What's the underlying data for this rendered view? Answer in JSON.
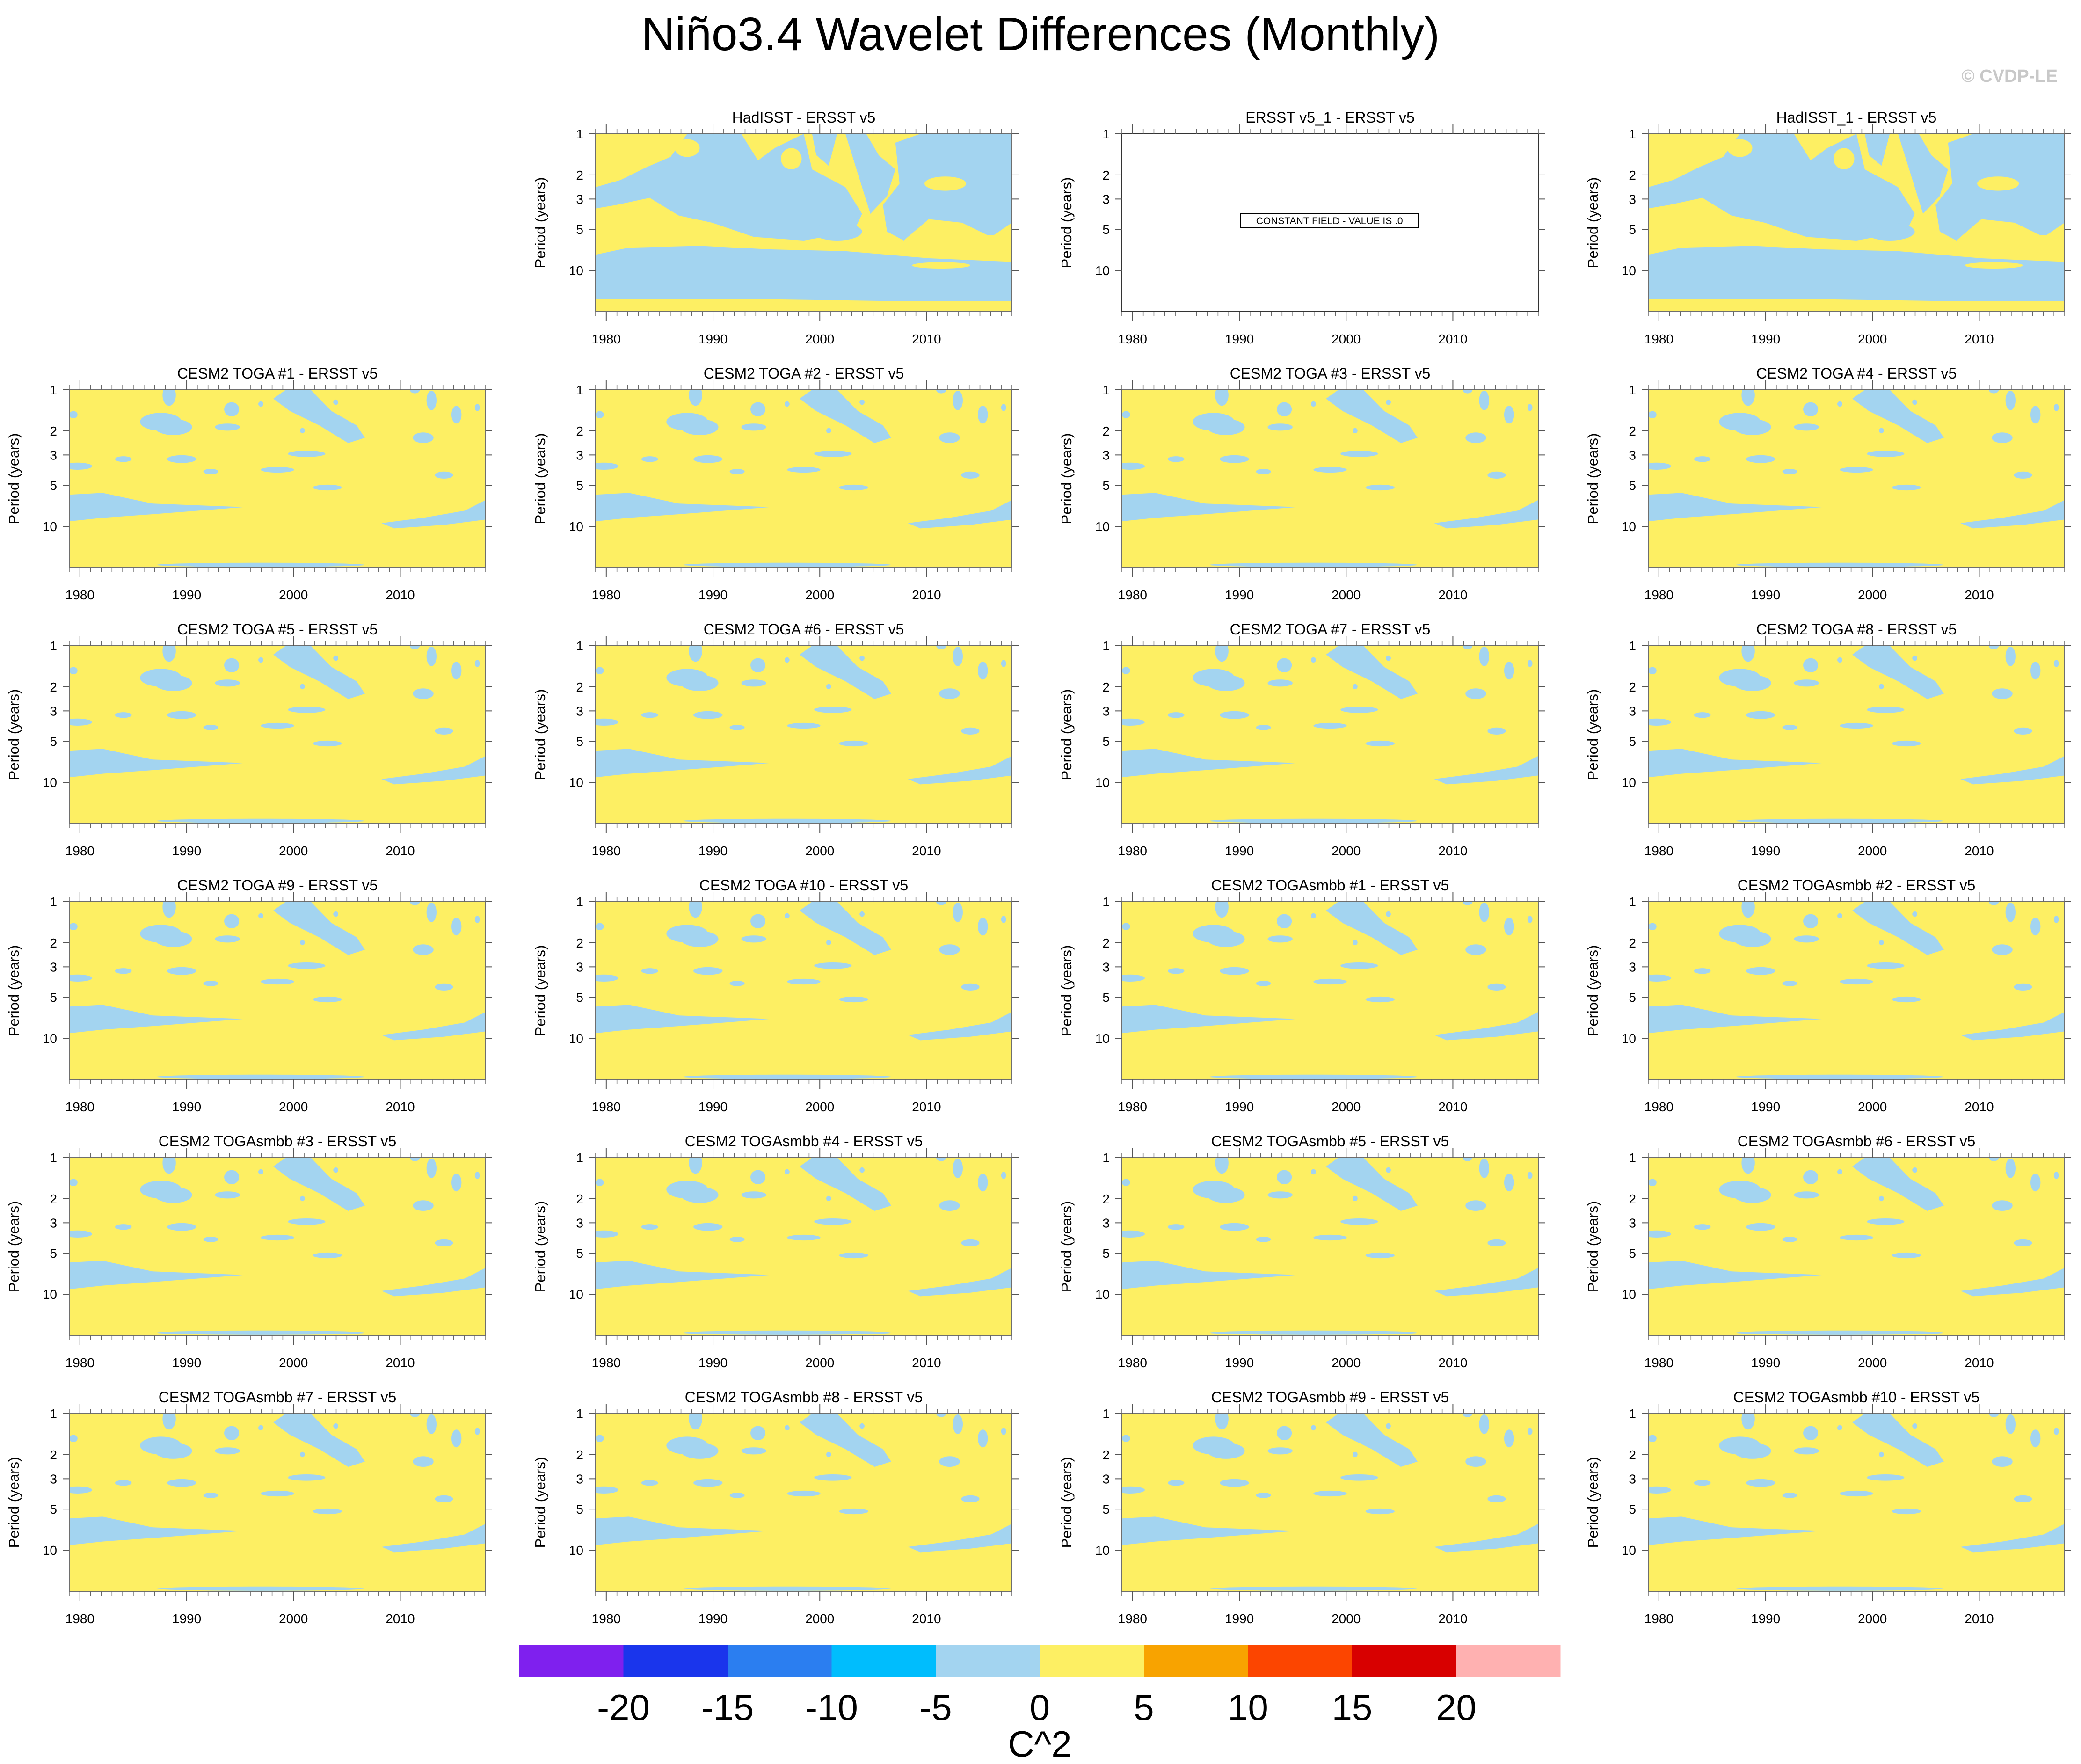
{
  "title": "Niño3.4 Wavelet Differences (Monthly)",
  "copyright": "© CVDP-LE",
  "chart_data": {
    "type": "heatmap",
    "x_ticks": [
      1980,
      1990,
      2000,
      2010
    ],
    "xlim": [
      1979,
      2018
    ],
    "y_ticks": [
      1,
      2,
      3,
      5,
      10
    ],
    "ylim": [
      1,
      20
    ],
    "ylabel": "Period (years)",
    "colors": {
      "negative": "#a3d4f0",
      "positive": "#fdef63",
      "box": "#6e6e6e"
    },
    "panels": [
      {
        "title": "HadISST - ERSST v5",
        "pattern": "obs"
      },
      {
        "title": "ERSST v5_1 - ERSST v5",
        "pattern": "constant",
        "note": "CONSTANT FIELD - VALUE IS .0"
      },
      {
        "title": "HadISST_1 - ERSST v5",
        "pattern": "obs"
      },
      {
        "title": "CESM2 TOGA #1 - ERSST v5",
        "pattern": "model"
      },
      {
        "title": "CESM2 TOGA #2 - ERSST v5",
        "pattern": "model"
      },
      {
        "title": "CESM2 TOGA #3 - ERSST v5",
        "pattern": "model"
      },
      {
        "title": "CESM2 TOGA #4 - ERSST v5",
        "pattern": "model"
      },
      {
        "title": "CESM2 TOGA #5 - ERSST v5",
        "pattern": "model"
      },
      {
        "title": "CESM2 TOGA #6 - ERSST v5",
        "pattern": "model"
      },
      {
        "title": "CESM2 TOGA #7 - ERSST v5",
        "pattern": "model"
      },
      {
        "title": "CESM2 TOGA #8 - ERSST v5",
        "pattern": "model"
      },
      {
        "title": "CESM2 TOGA #9 - ERSST v5",
        "pattern": "model"
      },
      {
        "title": "CESM2 TOGA #10 - ERSST v5",
        "pattern": "model"
      },
      {
        "title": "CESM2 TOGAsmbb #1 - ERSST v5",
        "pattern": "model"
      },
      {
        "title": "CESM2 TOGAsmbb #2 - ERSST v5",
        "pattern": "model"
      },
      {
        "title": "CESM2 TOGAsmbb #3 - ERSST v5",
        "pattern": "model"
      },
      {
        "title": "CESM2 TOGAsmbb #4 - ERSST v5",
        "pattern": "model"
      },
      {
        "title": "CESM2 TOGAsmbb #5 - ERSST v5",
        "pattern": "model"
      },
      {
        "title": "CESM2 TOGAsmbb #6 - ERSST v5",
        "pattern": "model"
      },
      {
        "title": "CESM2 TOGAsmbb #7 - ERSST v5",
        "pattern": "model"
      },
      {
        "title": "CESM2 TOGAsmbb #8 - ERSST v5",
        "pattern": "model"
      },
      {
        "title": "CESM2 TOGAsmbb #9 - ERSST v5",
        "pattern": "model"
      },
      {
        "title": "CESM2 TOGAsmbb #10 - ERSST v5",
        "pattern": "model"
      }
    ],
    "colorbar": {
      "label": "C^2",
      "ticks": [
        -20,
        -15,
        -10,
        -5,
        0,
        5,
        10,
        15,
        20
      ],
      "colors": [
        "#7f20ee",
        "#1a35ec",
        "#2b7ef0",
        "#00bdfd",
        "#a3d4f0",
        "#fdef63",
        "#f8a300",
        "#fc4500",
        "#d80000",
        "#ffb1b1"
      ]
    }
  }
}
